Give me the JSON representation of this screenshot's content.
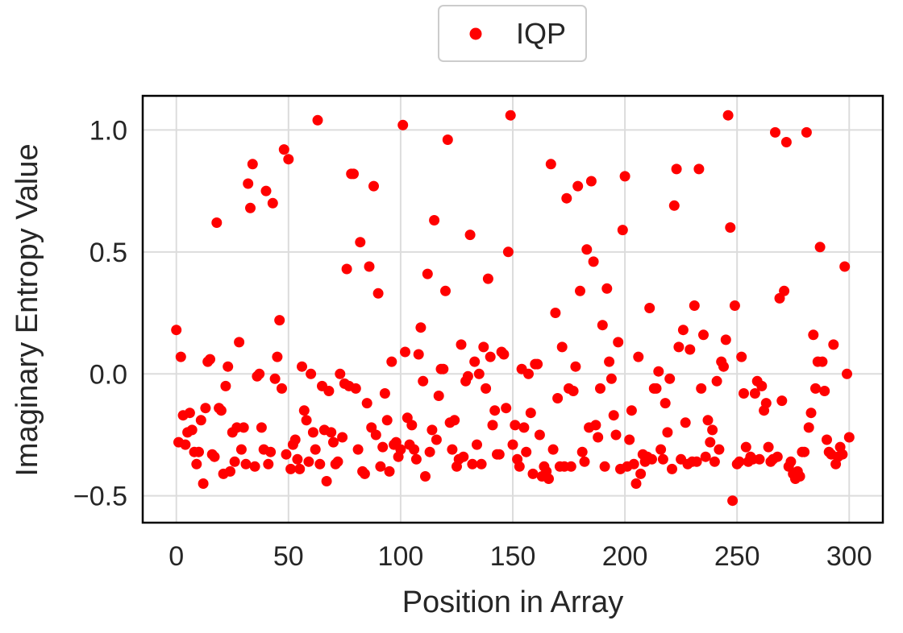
{
  "chart_data": {
    "type": "scatter",
    "xlabel": "Position in Array",
    "ylabel": "Imaginary Entropy Value",
    "xlim": [
      -15,
      315
    ],
    "ylim": [
      -0.61,
      1.14
    ],
    "xticks": [
      0,
      50,
      100,
      150,
      200,
      250,
      300
    ],
    "yticks": [
      -0.5,
      0.0,
      0.5,
      1.0
    ],
    "xtick_labels": [
      "0",
      "50",
      "100",
      "150",
      "200",
      "250",
      "300"
    ],
    "ytick_labels": [
      "−0.5",
      "0.0",
      "0.5",
      "1.0"
    ],
    "grid": true,
    "legend_position": "top-center",
    "series": [
      {
        "name": "IQP",
        "color": "#ff0000",
        "points": [
          [
            0,
            0.18
          ],
          [
            1,
            -0.28
          ],
          [
            2,
            0.07
          ],
          [
            3,
            -0.17
          ],
          [
            4,
            -0.29
          ],
          [
            5,
            -0.24
          ],
          [
            6,
            -0.16
          ],
          [
            7,
            -0.23
          ],
          [
            8,
            -0.32
          ],
          [
            9,
            -0.37
          ],
          [
            10,
            -0.32
          ],
          [
            11,
            -0.19
          ],
          [
            12,
            -0.45
          ],
          [
            13,
            -0.14
          ],
          [
            14,
            0.05
          ],
          [
            15,
            0.06
          ],
          [
            16,
            -0.33
          ],
          [
            17,
            -0.34
          ],
          [
            18,
            0.62
          ],
          [
            19,
            -0.14
          ],
          [
            20,
            -0.15
          ],
          [
            21,
            -0.41
          ],
          [
            22,
            -0.05
          ],
          [
            23,
            0.03
          ],
          [
            24,
            -0.4
          ],
          [
            25,
            -0.24
          ],
          [
            26,
            -0.36
          ],
          [
            27,
            -0.22
          ],
          [
            28,
            0.13
          ],
          [
            29,
            -0.31
          ],
          [
            30,
            -0.22
          ],
          [
            31,
            -0.37
          ],
          [
            32,
            0.78
          ],
          [
            33,
            0.68
          ],
          [
            34,
            0.86
          ],
          [
            35,
            -0.38
          ],
          [
            36,
            -0.01
          ],
          [
            37,
            0.0
          ],
          [
            38,
            -0.22
          ],
          [
            39,
            -0.31
          ],
          [
            40,
            0.75
          ],
          [
            41,
            -0.37
          ],
          [
            42,
            -0.32
          ],
          [
            43,
            0.7
          ],
          [
            44,
            -0.02
          ],
          [
            45,
            0.07
          ],
          [
            46,
            0.22
          ],
          [
            47,
            -0.06
          ],
          [
            48,
            0.92
          ],
          [
            49,
            -0.33
          ],
          [
            50,
            0.88
          ],
          [
            51,
            -0.39
          ],
          [
            52,
            -0.29
          ],
          [
            53,
            -0.27
          ],
          [
            54,
            -0.35
          ],
          [
            55,
            -0.39
          ],
          [
            56,
            0.03
          ],
          [
            57,
            -0.15
          ],
          [
            58,
            -0.19
          ],
          [
            59,
            -0.36
          ],
          [
            60,
            0.0
          ],
          [
            61,
            -0.24
          ],
          [
            62,
            -0.31
          ],
          [
            63,
            1.04
          ],
          [
            64,
            -0.37
          ],
          [
            65,
            -0.05
          ],
          [
            66,
            -0.23
          ],
          [
            67,
            -0.44
          ],
          [
            68,
            -0.07
          ],
          [
            69,
            -0.24
          ],
          [
            70,
            -0.28
          ],
          [
            71,
            -0.37
          ],
          [
            72,
            -0.36
          ],
          [
            73,
            0.0
          ],
          [
            74,
            -0.26
          ],
          [
            75,
            -0.04
          ],
          [
            76,
            0.43
          ],
          [
            77,
            -0.05
          ],
          [
            78,
            0.82
          ],
          [
            79,
            0.82
          ],
          [
            80,
            -0.06
          ],
          [
            81,
            -0.31
          ],
          [
            82,
            0.54
          ],
          [
            83,
            -0.4
          ],
          [
            84,
            -0.41
          ],
          [
            85,
            -0.12
          ],
          [
            86,
            0.44
          ],
          [
            87,
            -0.22
          ],
          [
            88,
            0.77
          ],
          [
            89,
            -0.25
          ],
          [
            90,
            0.33
          ],
          [
            91,
            -0.38
          ],
          [
            92,
            -0.3
          ],
          [
            93,
            -0.08
          ],
          [
            94,
            -0.19
          ],
          [
            95,
            -0.4
          ],
          [
            96,
            0.05
          ],
          [
            97,
            -0.29
          ],
          [
            98,
            -0.28
          ],
          [
            99,
            -0.34
          ],
          [
            100,
            -0.31
          ],
          [
            101,
            1.02
          ],
          [
            102,
            0.09
          ],
          [
            103,
            -0.18
          ],
          [
            104,
            -0.29
          ],
          [
            105,
            -0.21
          ],
          [
            106,
            -0.31
          ],
          [
            107,
            -0.35
          ],
          [
            108,
            0.08
          ],
          [
            109,
            0.19
          ],
          [
            110,
            -0.03
          ],
          [
            111,
            -0.42
          ],
          [
            112,
            0.41
          ],
          [
            113,
            -0.32
          ],
          [
            114,
            -0.23
          ],
          [
            115,
            0.63
          ],
          [
            116,
            -0.27
          ],
          [
            117,
            -0.09
          ],
          [
            118,
            0.02
          ],
          [
            119,
            0.02
          ],
          [
            120,
            0.34
          ],
          [
            121,
            0.96
          ],
          [
            122,
            -0.2
          ],
          [
            123,
            -0.31
          ],
          [
            124,
            -0.19
          ],
          [
            125,
            -0.38
          ],
          [
            126,
            -0.35
          ],
          [
            127,
            0.12
          ],
          [
            128,
            -0.34
          ],
          [
            129,
            -0.03
          ],
          [
            130,
            -0.01
          ],
          [
            131,
            0.57
          ],
          [
            132,
            -0.37
          ],
          [
            133,
            0.05
          ],
          [
            134,
            -0.29
          ],
          [
            135,
            0.0
          ],
          [
            136,
            -0.37
          ],
          [
            137,
            0.11
          ],
          [
            138,
            -0.06
          ],
          [
            139,
            0.39
          ],
          [
            140,
            0.07
          ],
          [
            141,
            -0.21
          ],
          [
            142,
            -0.15
          ],
          [
            143,
            -0.33
          ],
          [
            144,
            -0.33
          ],
          [
            145,
            0.09
          ],
          [
            146,
            0.08
          ],
          [
            147,
            -0.14
          ],
          [
            148,
            0.5
          ],
          [
            149,
            1.06
          ],
          [
            150,
            -0.29
          ],
          [
            151,
            -0.21
          ],
          [
            152,
            -0.35
          ],
          [
            153,
            -0.38
          ],
          [
            154,
            0.02
          ],
          [
            155,
            -0.22
          ],
          [
            156,
            -0.32
          ],
          [
            157,
            0.0
          ],
          [
            158,
            -0.16
          ],
          [
            159,
            -0.41
          ],
          [
            160,
            0.04
          ],
          [
            161,
            0.04
          ],
          [
            162,
            -0.25
          ],
          [
            163,
            -0.42
          ],
          [
            164,
            -0.38
          ],
          [
            165,
            -0.4
          ],
          [
            166,
            -0.43
          ],
          [
            167,
            0.86
          ],
          [
            168,
            -0.31
          ],
          [
            169,
            0.25
          ],
          [
            170,
            -0.1
          ],
          [
            171,
            -0.38
          ],
          [
            172,
            0.11
          ],
          [
            173,
            -0.38
          ],
          [
            174,
            0.72
          ],
          [
            175,
            -0.06
          ],
          [
            176,
            -0.38
          ],
          [
            177,
            -0.07
          ],
          [
            178,
            0.03
          ],
          [
            179,
            0.77
          ],
          [
            180,
            0.34
          ],
          [
            181,
            -0.32
          ],
          [
            182,
            -0.36
          ],
          [
            183,
            0.51
          ],
          [
            184,
            -0.22
          ],
          [
            185,
            0.79
          ],
          [
            186,
            0.46
          ],
          [
            187,
            -0.21
          ],
          [
            188,
            -0.26
          ],
          [
            189,
            -0.06
          ],
          [
            190,
            0.2
          ],
          [
            191,
            -0.38
          ],
          [
            192,
            0.35
          ],
          [
            193,
            0.05
          ],
          [
            194,
            -0.02
          ],
          [
            195,
            -0.17
          ],
          [
            196,
            -0.25
          ],
          [
            197,
            0.13
          ],
          [
            198,
            -0.39
          ],
          [
            199,
            0.59
          ],
          [
            200,
            0.81
          ],
          [
            201,
            -0.38
          ],
          [
            202,
            -0.27
          ],
          [
            203,
            -0.15
          ],
          [
            204,
            -0.37
          ],
          [
            205,
            -0.45
          ],
          [
            206,
            0.07
          ],
          [
            207,
            -0.41
          ],
          [
            208,
            -0.33
          ],
          [
            209,
            -0.36
          ],
          [
            210,
            -0.34
          ],
          [
            211,
            0.27
          ],
          [
            212,
            -0.35
          ],
          [
            213,
            -0.06
          ],
          [
            214,
            -0.06
          ],
          [
            215,
            0.01
          ],
          [
            216,
            -0.31
          ],
          [
            217,
            -0.35
          ],
          [
            218,
            -0.12
          ],
          [
            219,
            -0.24
          ],
          [
            220,
            -0.02
          ],
          [
            221,
            -0.39
          ],
          [
            222,
            0.69
          ],
          [
            223,
            0.84
          ],
          [
            224,
            0.11
          ],
          [
            225,
            -0.35
          ],
          [
            226,
            0.18
          ],
          [
            227,
            -0.2
          ],
          [
            228,
            -0.37
          ],
          [
            229,
            0.1
          ],
          [
            230,
            -0.36
          ],
          [
            231,
            0.28
          ],
          [
            232,
            -0.36
          ],
          [
            233,
            0.84
          ],
          [
            234,
            -0.06
          ],
          [
            235,
            0.16
          ],
          [
            236,
            -0.34
          ],
          [
            237,
            -0.19
          ],
          [
            238,
            -0.28
          ],
          [
            239,
            -0.23
          ],
          [
            240,
            -0.36
          ],
          [
            241,
            -0.03
          ],
          [
            242,
            -0.31
          ],
          [
            243,
            0.05
          ],
          [
            244,
            0.03
          ],
          [
            245,
            0.14
          ],
          [
            246,
            1.06
          ],
          [
            247,
            0.6
          ],
          [
            248,
            -0.52
          ],
          [
            249,
            0.28
          ],
          [
            250,
            -0.37
          ],
          [
            251,
            -0.36
          ],
          [
            252,
            0.07
          ],
          [
            253,
            -0.08
          ],
          [
            254,
            -0.3
          ],
          [
            255,
            -0.36
          ],
          [
            256,
            -0.34
          ],
          [
            257,
            -0.35
          ],
          [
            258,
            -0.08
          ],
          [
            259,
            -0.03
          ],
          [
            260,
            -0.35
          ],
          [
            261,
            -0.05
          ],
          [
            262,
            -0.15
          ],
          [
            263,
            -0.12
          ],
          [
            264,
            -0.3
          ],
          [
            265,
            -0.36
          ],
          [
            266,
            -0.35
          ],
          [
            267,
            0.99
          ],
          [
            268,
            -0.34
          ],
          [
            269,
            0.31
          ],
          [
            270,
            -0.11
          ],
          [
            271,
            0.34
          ],
          [
            272,
            0.95
          ],
          [
            273,
            -0.38
          ],
          [
            274,
            -0.36
          ],
          [
            275,
            -0.41
          ],
          [
            276,
            -0.43
          ],
          [
            277,
            -0.4
          ],
          [
            278,
            -0.42
          ],
          [
            279,
            -0.32
          ],
          [
            280,
            -0.32
          ],
          [
            281,
            0.99
          ],
          [
            282,
            -0.22
          ],
          [
            283,
            -0.16
          ],
          [
            284,
            0.16
          ],
          [
            285,
            -0.06
          ],
          [
            286,
            0.05
          ],
          [
            287,
            0.52
          ],
          [
            288,
            0.05
          ],
          [
            289,
            -0.07
          ],
          [
            290,
            -0.27
          ],
          [
            291,
            -0.32
          ],
          [
            292,
            -0.33
          ],
          [
            293,
            0.12
          ],
          [
            294,
            -0.37
          ],
          [
            295,
            -0.34
          ],
          [
            296,
            -0.3
          ],
          [
            297,
            -0.33
          ],
          [
            298,
            0.44
          ],
          [
            299,
            0.0
          ],
          [
            300,
            -0.26
          ]
        ]
      }
    ]
  }
}
